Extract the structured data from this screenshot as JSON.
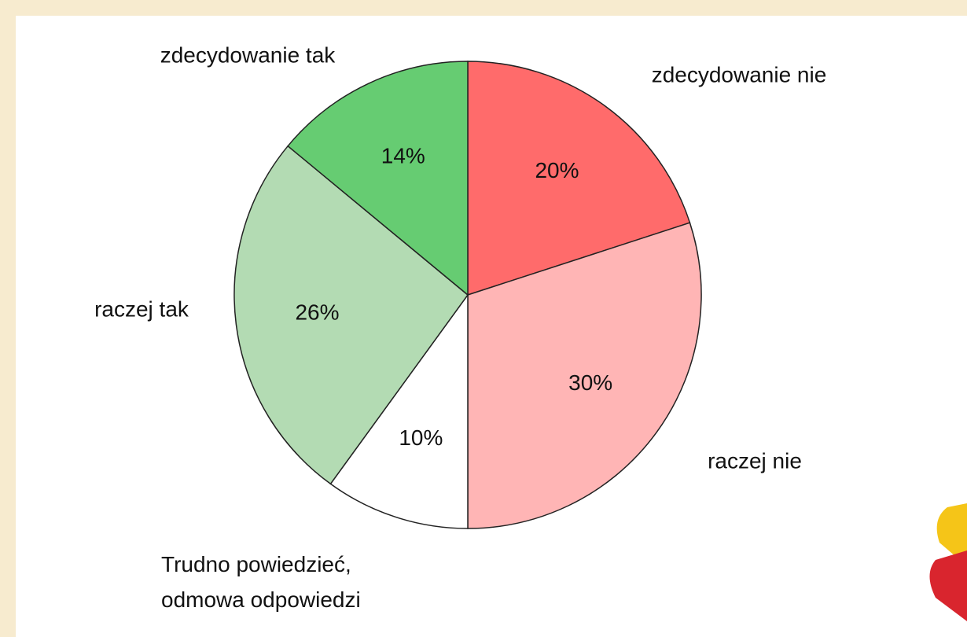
{
  "chart_data": {
    "type": "pie",
    "categories": [
      "zdecydowanie nie",
      "raczej nie",
      "Trudno powiedzieć,\nodmowa odpowiedzi",
      "raczej tak",
      "zdecydowanie tak"
    ],
    "values": [
      20,
      30,
      10,
      26,
      14
    ],
    "value_labels": [
      "20%",
      "30%",
      "10%",
      "26%",
      "14%"
    ],
    "colors": [
      "#ff6b6b",
      "#ffb5b5",
      "#ffffff",
      "#b3dbb3",
      "#66cc72"
    ]
  }
}
